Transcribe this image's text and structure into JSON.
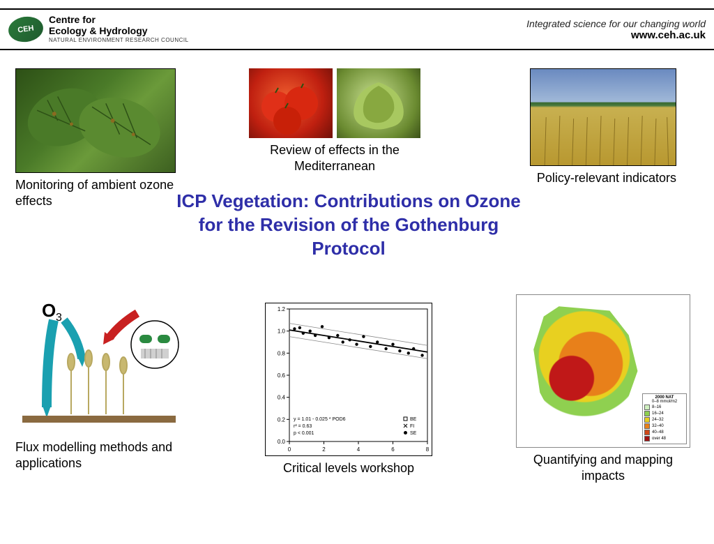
{
  "header": {
    "logo_abbrev": "CEH",
    "logo_line1": "Centre for",
    "logo_line2": "Ecology & Hydrology",
    "logo_line3": "NATURAL ENVIRONMENT RESEARCH COUNCIL",
    "tagline": "Integrated science for our changing world",
    "url": "www.ceh.ac.uk"
  },
  "title": "ICP Vegetation: Contributions on Ozone for the Revision of the Gothenburg Protocol",
  "title_color": "#2e2ea8",
  "title_fontsize": 26,
  "panels": {
    "top_left": {
      "caption": "Monitoring of ambient ozone effects",
      "image_desc": "damaged-leaves-photo",
      "bg": "linear-gradient(135deg,#2d5016,#4a7a28,#6b9a3a)"
    },
    "top_center": {
      "caption": "Review of effects in the Mediterranean",
      "left_image_desc": "tomatoes-photo",
      "left_bg": "radial-gradient(circle,#e84020,#a82010)",
      "right_image_desc": "lettuce-photo",
      "right_bg": "radial-gradient(circle at 40% 40%,#b8d880,#5a7a30)"
    },
    "top_right": {
      "caption": "Policy-relevant indicators",
      "image_desc": "wheat-field-photo",
      "bg": "linear-gradient(180deg,#6a8ac0 0%,#8aa8d0 35%,#c8b060 36%,#a88830 100%)"
    },
    "bottom_left": {
      "caption": "Flux modelling methods and applications",
      "image_desc": "ozone-flux-diagram",
      "o3_label": "O",
      "o3_sub": "3"
    },
    "bottom_center": {
      "caption": "Critical levels workshop",
      "chart": {
        "type": "scatter",
        "xlim": [
          0,
          8
        ],
        "xtick_step": 2,
        "ylim": [
          0,
          1.2
        ],
        "ytick_step": 0.2,
        "xticks": [
          0,
          2,
          4,
          6,
          8
        ],
        "yticks": [
          0,
          0.2,
          0.4,
          0.6,
          0.8,
          1.0,
          1.2
        ],
        "regression_text1": "y = 1.01 - 0.025 * POD6",
        "regression_text2": "r² = 0.63",
        "regression_text3": "p < 0.001",
        "legend": [
          "BE",
          "FI",
          "SE"
        ],
        "legend_markers": [
          "square",
          "x",
          "circle"
        ],
        "line_slope": -0.025,
        "line_intercept": 1.01,
        "points": [
          [
            0.3,
            1.02
          ],
          [
            0.6,
            1.03
          ],
          [
            0.8,
            0.98
          ],
          [
            1.2,
            1.0
          ],
          [
            1.5,
            0.96
          ],
          [
            1.9,
            1.04
          ],
          [
            2.3,
            0.94
          ],
          [
            2.8,
            0.96
          ],
          [
            3.1,
            0.9
          ],
          [
            3.5,
            0.92
          ],
          [
            3.9,
            0.88
          ],
          [
            4.3,
            0.95
          ],
          [
            4.7,
            0.86
          ],
          [
            5.1,
            0.9
          ],
          [
            5.6,
            0.84
          ],
          [
            6.0,
            0.88
          ],
          [
            6.4,
            0.82
          ],
          [
            6.9,
            0.8
          ],
          [
            7.2,
            0.84
          ],
          [
            7.7,
            0.78
          ]
        ],
        "point_color": "#000000",
        "line_color": "#000000",
        "ci_color": "#888888",
        "axis_color": "#000000",
        "background_color": "#ffffff",
        "tick_fontsize": 8,
        "annotation_fontsize": 7
      }
    },
    "bottom_right": {
      "caption": "Quantifying and mapping impacts",
      "image_desc": "impact-map",
      "legend_title": "2000 NAT",
      "legend_units": "0–8 mmol/m2",
      "legend": [
        {
          "label": "8–16",
          "color": "#d0f0c0"
        },
        {
          "label": "16–24",
          "color": "#8fd050"
        },
        {
          "label": "24–32",
          "color": "#e8d020"
        },
        {
          "label": "32–40",
          "color": "#e8801a"
        },
        {
          "label": "40–48",
          "color": "#d04818"
        },
        {
          "label": "over 48",
          "color": "#a01010"
        }
      ]
    }
  }
}
